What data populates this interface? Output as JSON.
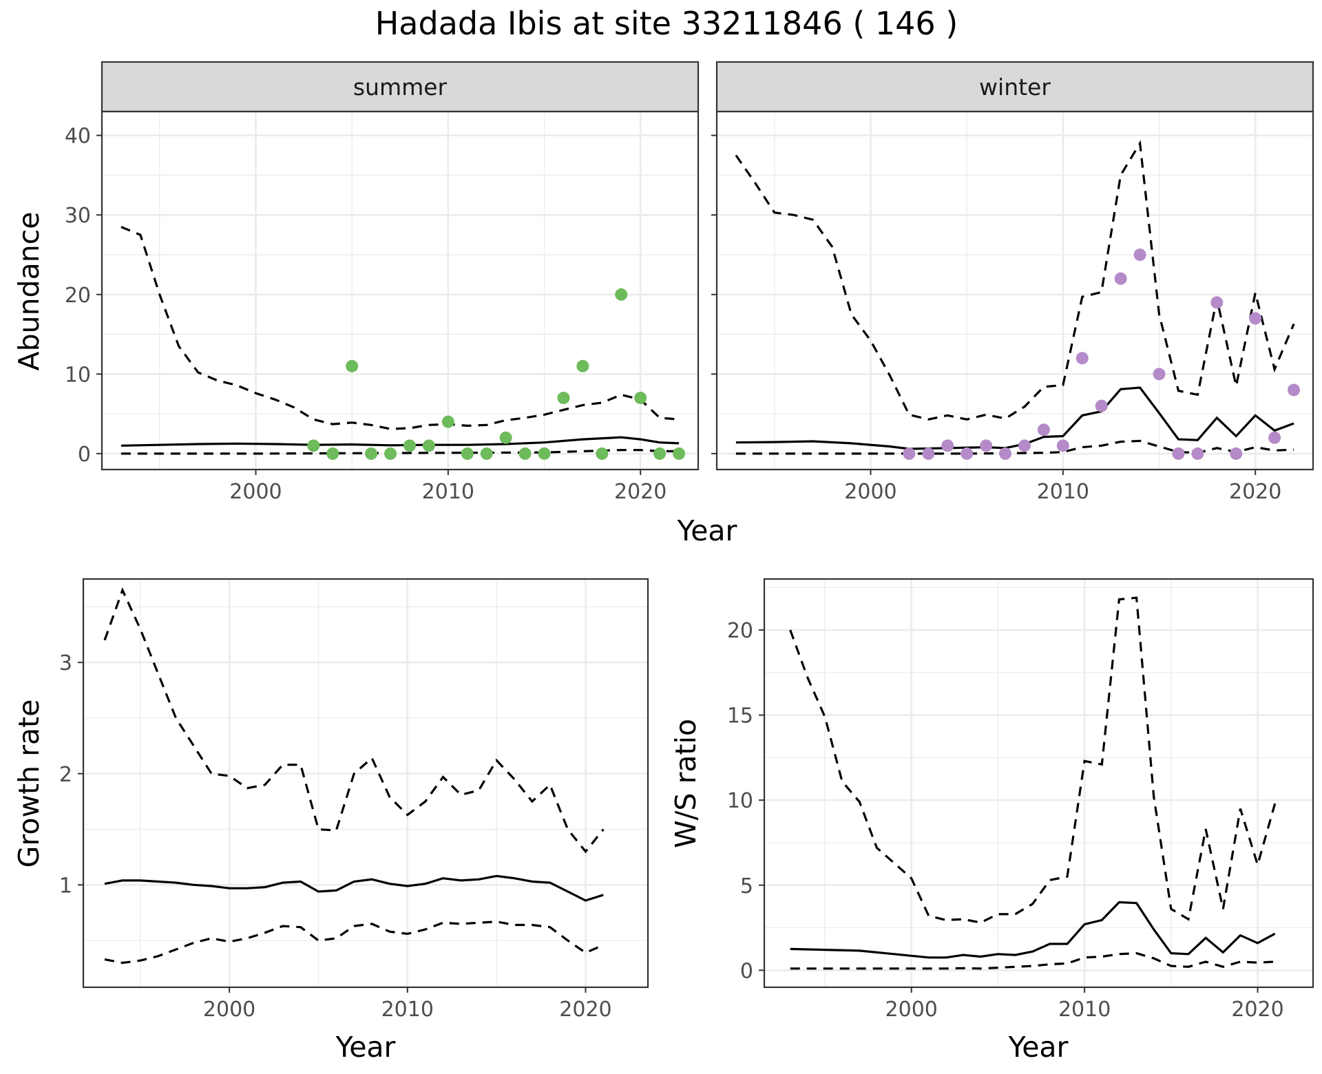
{
  "figure": {
    "title": "Hadada Ibis at site 33211846 ( 146 )"
  },
  "chart_data": [
    {
      "id": "summer",
      "type": "line",
      "strip_label": "summer",
      "xlabel": "Year",
      "ylabel": "Abundance",
      "xlim": [
        1992,
        2023
      ],
      "ylim": [
        -2,
        43
      ],
      "xticks": [
        2000,
        2010,
        2020
      ],
      "yticks": [
        0,
        10,
        20,
        30,
        40
      ],
      "points_color": "#6dbb5a",
      "grid": true,
      "median": [
        [
          1993,
          1.0
        ],
        [
          1995,
          1.1
        ],
        [
          1997,
          1.2
        ],
        [
          1999,
          1.25
        ],
        [
          2001,
          1.2
        ],
        [
          2003,
          1.1
        ],
        [
          2005,
          1.15
        ],
        [
          2007,
          1.05
        ],
        [
          2009,
          1.1
        ],
        [
          2011,
          1.1
        ],
        [
          2013,
          1.2
        ],
        [
          2015,
          1.4
        ],
        [
          2017,
          1.8
        ],
        [
          2019,
          2.05
        ],
        [
          2020,
          1.8
        ],
        [
          2021,
          1.4
        ],
        [
          2022,
          1.3
        ]
      ],
      "upper": [
        [
          1993,
          28.5
        ],
        [
          1994,
          27.5
        ],
        [
          1995,
          20
        ],
        [
          1996,
          13.5
        ],
        [
          1997,
          10.2
        ],
        [
          1998,
          9.2
        ],
        [
          1999,
          8.6
        ],
        [
          2000,
          7.6
        ],
        [
          2001,
          6.8
        ],
        [
          2002,
          5.8
        ],
        [
          2003,
          4.3
        ],
        [
          2004,
          3.7
        ],
        [
          2005,
          3.9
        ],
        [
          2006,
          3.6
        ],
        [
          2007,
          3.1
        ],
        [
          2008,
          3.2
        ],
        [
          2009,
          3.6
        ],
        [
          2010,
          3.7
        ],
        [
          2011,
          3.5
        ],
        [
          2012,
          3.6
        ],
        [
          2013,
          4.2
        ],
        [
          2014,
          4.5
        ],
        [
          2015,
          4.9
        ],
        [
          2016,
          5.5
        ],
        [
          2017,
          6.1
        ],
        [
          2018,
          6.4
        ],
        [
          2019,
          7.4
        ],
        [
          2020,
          6.8
        ],
        [
          2021,
          4.5
        ],
        [
          2022,
          4.3
        ]
      ],
      "lower": [
        [
          1993,
          0
        ],
        [
          1995,
          0
        ],
        [
          2000,
          0
        ],
        [
          2005,
          0.05
        ],
        [
          2010,
          0.1
        ],
        [
          2015,
          0.15
        ],
        [
          2017,
          0.3
        ],
        [
          2019,
          0.45
        ],
        [
          2020,
          0.45
        ],
        [
          2021,
          0.3
        ],
        [
          2022,
          0.3
        ]
      ],
      "points": [
        [
          2003,
          1
        ],
        [
          2004,
          0
        ],
        [
          2005,
          11
        ],
        [
          2006,
          0
        ],
        [
          2007,
          0
        ],
        [
          2008,
          1
        ],
        [
          2009,
          1
        ],
        [
          2010,
          4
        ],
        [
          2011,
          0
        ],
        [
          2012,
          0
        ],
        [
          2013,
          2
        ],
        [
          2014,
          0
        ],
        [
          2015,
          0
        ],
        [
          2016,
          7
        ],
        [
          2017,
          11
        ],
        [
          2018,
          0
        ],
        [
          2019,
          20
        ],
        [
          2020,
          7
        ],
        [
          2021,
          0
        ],
        [
          2022,
          0
        ]
      ]
    },
    {
      "id": "winter",
      "type": "line",
      "strip_label": "winter",
      "xlabel": "Year",
      "ylabel": "Abundance",
      "xlim": [
        1992,
        2023
      ],
      "ylim": [
        -2,
        43
      ],
      "xticks": [
        2000,
        2010,
        2020
      ],
      "yticks": [
        0,
        10,
        20,
        30,
        40
      ],
      "points_color": "#b48ac8",
      "grid": true,
      "median": [
        [
          1993,
          1.4
        ],
        [
          1995,
          1.45
        ],
        [
          1997,
          1.55
        ],
        [
          1999,
          1.3
        ],
        [
          2001,
          0.9
        ],
        [
          2002,
          0.6
        ],
        [
          2004,
          0.7
        ],
        [
          2006,
          0.8
        ],
        [
          2007,
          0.7
        ],
        [
          2008,
          1.2
        ],
        [
          2009,
          2.1
        ],
        [
          2010,
          2.2
        ],
        [
          2011,
          4.8
        ],
        [
          2012,
          5.3
        ],
        [
          2013,
          8.1
        ],
        [
          2014,
          8.3
        ],
        [
          2015,
          5.1
        ],
        [
          2016,
          1.8
        ],
        [
          2017,
          1.7
        ],
        [
          2018,
          4.5
        ],
        [
          2019,
          2.2
        ],
        [
          2020,
          4.8
        ],
        [
          2021,
          2.9
        ],
        [
          2022,
          3.8
        ]
      ],
      "upper": [
        [
          1993,
          37.5
        ],
        [
          1994,
          34
        ],
        [
          1995,
          30.3
        ],
        [
          1996,
          30
        ],
        [
          1997,
          29.4
        ],
        [
          1998,
          26
        ],
        [
          1999,
          17.5
        ],
        [
          2000,
          14.2
        ],
        [
          2001,
          9.8
        ],
        [
          2002,
          4.9
        ],
        [
          2003,
          4.3
        ],
        [
          2004,
          4.8
        ],
        [
          2005,
          4.3
        ],
        [
          2006,
          4.9
        ],
        [
          2007,
          4.4
        ],
        [
          2008,
          5.9
        ],
        [
          2009,
          8.4
        ],
        [
          2010,
          8.6
        ],
        [
          2011,
          19.7
        ],
        [
          2012,
          20.3
        ],
        [
          2013,
          35
        ],
        [
          2014,
          39
        ],
        [
          2015,
          17.5
        ],
        [
          2016,
          7.9
        ],
        [
          2017,
          7.4
        ],
        [
          2018,
          19.5
        ],
        [
          2019,
          8.5
        ],
        [
          2020,
          20.2
        ],
        [
          2021,
          10.6
        ],
        [
          2022,
          16.3
        ]
      ],
      "lower": [
        [
          1993,
          0
        ],
        [
          2000,
          0
        ],
        [
          2005,
          0
        ],
        [
          2009,
          0.1
        ],
        [
          2010,
          0.2
        ],
        [
          2011,
          0.8
        ],
        [
          2012,
          1
        ],
        [
          2013,
          1.5
        ],
        [
          2014,
          1.6
        ],
        [
          2015,
          0.9
        ],
        [
          2016,
          0.2
        ],
        [
          2017,
          0.1
        ],
        [
          2018,
          0.7
        ],
        [
          2019,
          0.2
        ],
        [
          2020,
          0.8
        ],
        [
          2021,
          0.4
        ],
        [
          2022,
          0.5
        ]
      ],
      "points": [
        [
          2002,
          0
        ],
        [
          2003,
          0
        ],
        [
          2004,
          1
        ],
        [
          2005,
          0
        ],
        [
          2006,
          1
        ],
        [
          2007,
          0
        ],
        [
          2008,
          1
        ],
        [
          2009,
          3
        ],
        [
          2010,
          1
        ],
        [
          2011,
          12
        ],
        [
          2012,
          6
        ],
        [
          2013,
          22
        ],
        [
          2014,
          25
        ],
        [
          2015,
          10
        ],
        [
          2016,
          0
        ],
        [
          2017,
          0
        ],
        [
          2018,
          19
        ],
        [
          2019,
          0
        ],
        [
          2020,
          17
        ],
        [
          2021,
          2
        ],
        [
          2022,
          8
        ]
      ]
    },
    {
      "id": "growth",
      "type": "line",
      "xlabel": "Year",
      "ylabel": "Growth rate",
      "xlim": [
        1991.8,
        2023.5
      ],
      "ylim": [
        0.08,
        3.75
      ],
      "xticks": [
        2000,
        2010,
        2020
      ],
      "yticks": [
        1,
        2,
        3
      ],
      "grid": true,
      "median": [
        [
          1993,
          1.01
        ],
        [
          1994,
          1.04
        ],
        [
          1995,
          1.04
        ],
        [
          1996,
          1.03
        ],
        [
          1997,
          1.02
        ],
        [
          1998,
          1.0
        ],
        [
          1999,
          0.99
        ],
        [
          2000,
          0.97
        ],
        [
          2001,
          0.97
        ],
        [
          2002,
          0.98
        ],
        [
          2003,
          1.02
        ],
        [
          2004,
          1.03
        ],
        [
          2005,
          0.94
        ],
        [
          2006,
          0.95
        ],
        [
          2007,
          1.03
        ],
        [
          2008,
          1.05
        ],
        [
          2009,
          1.01
        ],
        [
          2010,
          0.99
        ],
        [
          2011,
          1.01
        ],
        [
          2012,
          1.06
        ],
        [
          2013,
          1.04
        ],
        [
          2014,
          1.05
        ],
        [
          2015,
          1.08
        ],
        [
          2016,
          1.06
        ],
        [
          2017,
          1.03
        ],
        [
          2018,
          1.02
        ],
        [
          2019,
          0.94
        ],
        [
          2020,
          0.86
        ],
        [
          2021,
          0.91
        ]
      ],
      "upper": [
        [
          1993,
          3.2
        ],
        [
          1994,
          3.65
        ],
        [
          1995,
          3.3
        ],
        [
          1996,
          2.9
        ],
        [
          1997,
          2.5
        ],
        [
          1998,
          2.25
        ],
        [
          1999,
          2.0
        ],
        [
          2000,
          1.98
        ],
        [
          2001,
          1.87
        ],
        [
          2002,
          1.9
        ],
        [
          2003,
          2.08
        ],
        [
          2004,
          2.08
        ],
        [
          2005,
          1.5
        ],
        [
          2006,
          1.49
        ],
        [
          2007,
          2.0
        ],
        [
          2008,
          2.14
        ],
        [
          2009,
          1.79
        ],
        [
          2010,
          1.63
        ],
        [
          2011,
          1.75
        ],
        [
          2012,
          1.97
        ],
        [
          2013,
          1.81
        ],
        [
          2014,
          1.85
        ],
        [
          2015,
          2.12
        ],
        [
          2016,
          1.95
        ],
        [
          2017,
          1.75
        ],
        [
          2018,
          1.9
        ],
        [
          2019,
          1.5
        ],
        [
          2020,
          1.3
        ],
        [
          2021,
          1.5
        ]
      ],
      "lower": [
        [
          1993,
          0.33
        ],
        [
          1994,
          0.3
        ],
        [
          1995,
          0.32
        ],
        [
          1996,
          0.36
        ],
        [
          1997,
          0.42
        ],
        [
          1998,
          0.48
        ],
        [
          1999,
          0.52
        ],
        [
          2000,
          0.49
        ],
        [
          2001,
          0.52
        ],
        [
          2002,
          0.57
        ],
        [
          2003,
          0.63
        ],
        [
          2004,
          0.62
        ],
        [
          2005,
          0.5
        ],
        [
          2006,
          0.52
        ],
        [
          2007,
          0.63
        ],
        [
          2008,
          0.65
        ],
        [
          2009,
          0.58
        ],
        [
          2010,
          0.56
        ],
        [
          2011,
          0.6
        ],
        [
          2012,
          0.66
        ],
        [
          2013,
          0.65
        ],
        [
          2014,
          0.66
        ],
        [
          2015,
          0.67
        ],
        [
          2016,
          0.64
        ],
        [
          2017,
          0.64
        ],
        [
          2018,
          0.62
        ],
        [
          2019,
          0.5
        ],
        [
          2020,
          0.39
        ],
        [
          2021,
          0.46
        ]
      ]
    },
    {
      "id": "ratio",
      "type": "line",
      "xlabel": "Year",
      "ylabel": "W/S ratio",
      "xlim": [
        1991.5,
        2023.2
      ],
      "ylim": [
        -1,
        23
      ],
      "xticks": [
        2000,
        2010,
        2020
      ],
      "yticks": [
        0,
        5,
        10,
        15,
        20
      ],
      "grid": true,
      "median": [
        [
          1993,
          1.25
        ],
        [
          1995,
          1.2
        ],
        [
          1997,
          1.15
        ],
        [
          1999,
          0.95
        ],
        [
          2001,
          0.75
        ],
        [
          2002,
          0.75
        ],
        [
          2003,
          0.9
        ],
        [
          2004,
          0.8
        ],
        [
          2005,
          0.95
        ],
        [
          2006,
          0.9
        ],
        [
          2007,
          1.1
        ],
        [
          2008,
          1.55
        ],
        [
          2009,
          1.55
        ],
        [
          2010,
          2.7
        ],
        [
          2011,
          2.95
        ],
        [
          2012,
          4.0
        ],
        [
          2013,
          3.95
        ],
        [
          2014,
          2.4
        ],
        [
          2015,
          1.0
        ],
        [
          2016,
          0.95
        ],
        [
          2017,
          1.9
        ],
        [
          2018,
          1.05
        ],
        [
          2019,
          2.05
        ],
        [
          2020,
          1.6
        ],
        [
          2021,
          2.15
        ]
      ],
      "upper": [
        [
          1993,
          20
        ],
        [
          1994,
          17.2
        ],
        [
          1995,
          14.9
        ],
        [
          1996,
          11.1
        ],
        [
          1997,
          9.9
        ],
        [
          1998,
          7.2
        ],
        [
          1999,
          6.3
        ],
        [
          2000,
          5.4
        ],
        [
          2001,
          3.2
        ],
        [
          2002,
          2.95
        ],
        [
          2003,
          3.0
        ],
        [
          2004,
          2.8
        ],
        [
          2005,
          3.3
        ],
        [
          2006,
          3.3
        ],
        [
          2007,
          3.9
        ],
        [
          2008,
          5.3
        ],
        [
          2009,
          5.5
        ],
        [
          2010,
          12.3
        ],
        [
          2011,
          12.1
        ],
        [
          2012,
          21.8
        ],
        [
          2013,
          21.9
        ],
        [
          2014,
          10.2
        ],
        [
          2015,
          3.6
        ],
        [
          2016,
          3.0
        ],
        [
          2017,
          8.3
        ],
        [
          2018,
          3.6
        ],
        [
          2019,
          9.5
        ],
        [
          2020,
          6.2
        ],
        [
          2021,
          9.8
        ]
      ],
      "lower": [
        [
          1993,
          0.1
        ],
        [
          1995,
          0.1
        ],
        [
          2000,
          0.1
        ],
        [
          2002,
          0.1
        ],
        [
          2003,
          0.12
        ],
        [
          2004,
          0.1
        ],
        [
          2005,
          0.15
        ],
        [
          2006,
          0.2
        ],
        [
          2007,
          0.25
        ],
        [
          2008,
          0.35
        ],
        [
          2009,
          0.4
        ],
        [
          2010,
          0.75
        ],
        [
          2011,
          0.8
        ],
        [
          2012,
          0.95
        ],
        [
          2013,
          1.0
        ],
        [
          2014,
          0.7
        ],
        [
          2015,
          0.25
        ],
        [
          2016,
          0.2
        ],
        [
          2017,
          0.5
        ],
        [
          2018,
          0.2
        ],
        [
          2019,
          0.5
        ],
        [
          2020,
          0.45
        ],
        [
          2021,
          0.5
        ]
      ]
    }
  ]
}
